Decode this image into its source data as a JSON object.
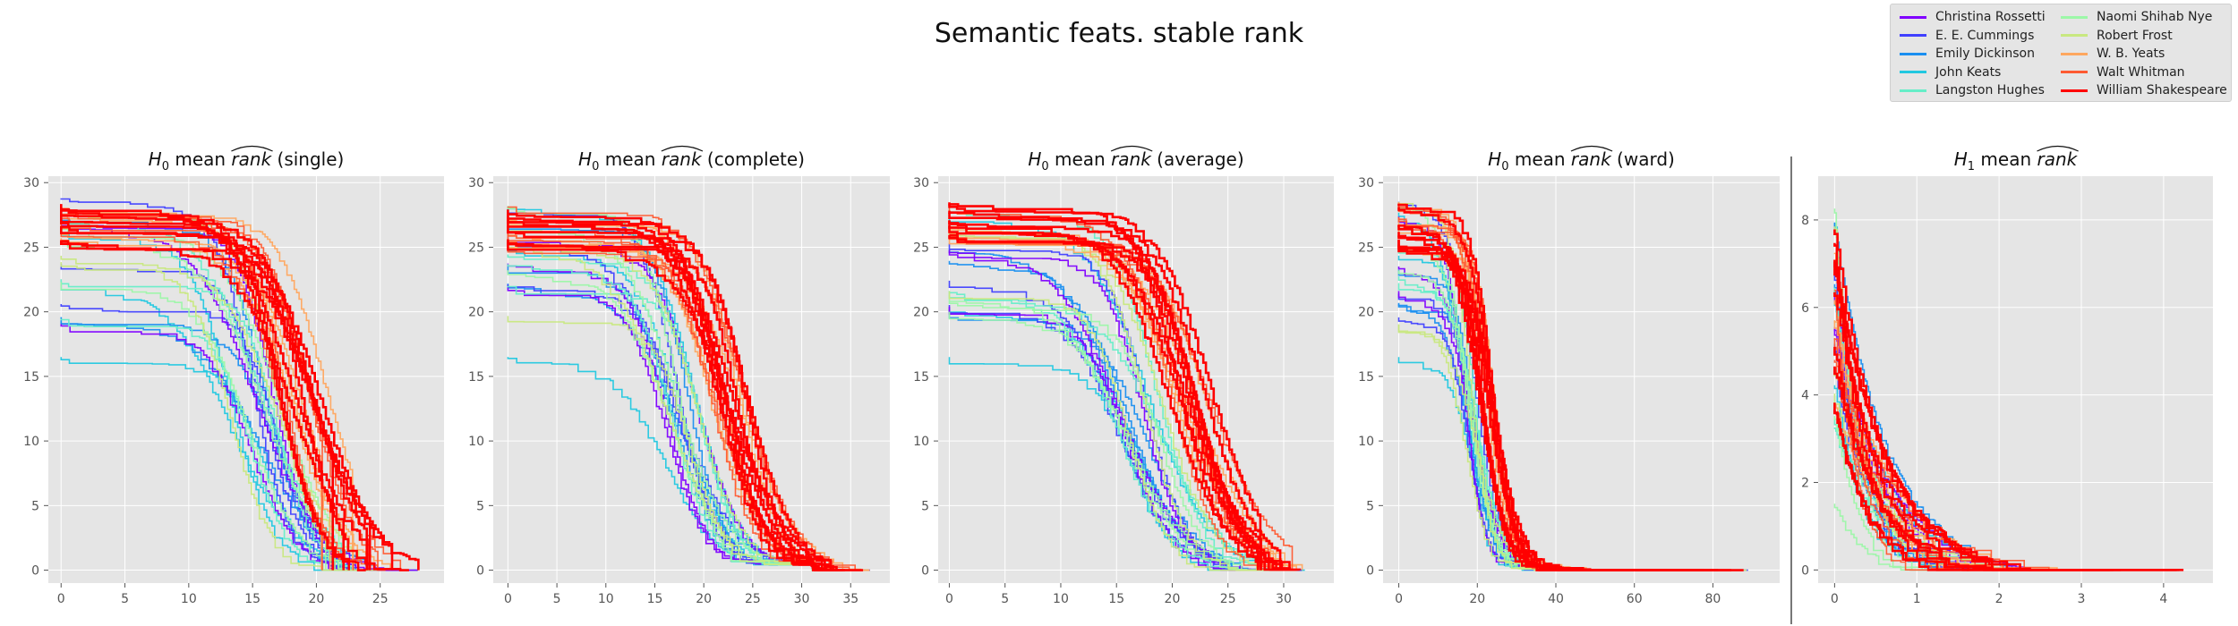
{
  "figure": {
    "title": "Semantic feats. stable rank",
    "legend_position": "top-right",
    "background": "#e5e5e5",
    "grid": true
  },
  "legend": {
    "entries": [
      {
        "label": "Christina Rossetti",
        "color": "#8000ff"
      },
      {
        "label": "E. E. Cummings",
        "color": "#4040ff"
      },
      {
        "label": "Emily Dickinson",
        "color": "#1a8ff0"
      },
      {
        "label": "John Keats",
        "color": "#22c8e0"
      },
      {
        "label": "Langston Hughes",
        "color": "#66eec8"
      },
      {
        "label": "Naomi Shihab Nye",
        "color": "#9cf7a8"
      },
      {
        "label": "Robert Frost",
        "color": "#c8e880"
      },
      {
        "label": "W. B. Yeats",
        "color": "#ffa75f"
      },
      {
        "label": "Walt Whitman",
        "color": "#ff5a32"
      },
      {
        "label": "William Shakespeare",
        "color": "#ff0000"
      }
    ]
  },
  "chart_data": [
    {
      "type": "line",
      "title_base": "H",
      "title_sub": "0",
      "title_mid": " mean ",
      "title_hat": "rank",
      "title_suffix": " (single)",
      "xlim": [
        -1,
        30
      ],
      "ylim": [
        -1,
        30.5
      ],
      "xticks": [
        0,
        5,
        10,
        15,
        20,
        25
      ],
      "yticks": [
        0,
        5,
        10,
        15,
        20,
        25,
        30
      ],
      "series_summary": "step curves descending from 16.5–29 at x=0 to 0 near x=20–28"
    },
    {
      "type": "line",
      "title_base": "H",
      "title_sub": "0",
      "title_mid": " mean ",
      "title_hat": "rank",
      "title_suffix": " (complete)",
      "xlim": [
        -1.5,
        39
      ],
      "ylim": [
        -1,
        30.5
      ],
      "xticks": [
        0,
        5,
        10,
        15,
        20,
        25,
        30,
        35
      ],
      "yticks": [
        0,
        5,
        10,
        15,
        20,
        25,
        30
      ],
      "series_summary": "step curves descending to about 1 at x≈31 then 0 near x=33–37"
    },
    {
      "type": "line",
      "title_base": "H",
      "title_sub": "0",
      "title_mid": " mean ",
      "title_hat": "rank",
      "title_suffix": " (average)",
      "xlim": [
        -1,
        34.5
      ],
      "ylim": [
        -1,
        30.5
      ],
      "xticks": [
        0,
        5,
        10,
        15,
        20,
        25,
        30
      ],
      "yticks": [
        0,
        5,
        10,
        15,
        20,
        25,
        30
      ],
      "series_summary": "step curves descending to 0 near x=28–32"
    },
    {
      "type": "line",
      "title_base": "H",
      "title_sub": "0",
      "title_mid": " mean ",
      "title_hat": "rank",
      "title_suffix": " (ward)",
      "xlim": [
        -4,
        97
      ],
      "ylim": [
        -1,
        30.5
      ],
      "xticks": [
        0,
        20,
        40,
        60,
        80
      ],
      "yticks": [
        0,
        5,
        10,
        15,
        20,
        25,
        30
      ],
      "series_summary": "curves drop steeply before x≈25 then decay slowly to 0 near x=90"
    },
    {
      "type": "line",
      "title_base": "H",
      "title_sub": "1",
      "title_mid": " mean ",
      "title_hat": "rank",
      "title_suffix": "",
      "xlim": [
        -0.2,
        4.6
      ],
      "ylim": [
        -0.3,
        9
      ],
      "xticks": [
        0,
        1,
        2,
        3,
        4
      ],
      "yticks": [
        0,
        2,
        4,
        6,
        8
      ],
      "series_summary": "curves start 1.5–8.5 at x=0 and decay toward 0 by x≈4.3"
    }
  ]
}
